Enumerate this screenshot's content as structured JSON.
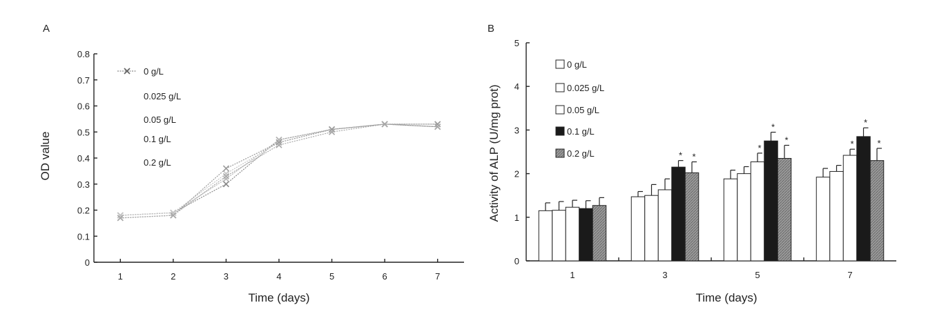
{
  "panels": [
    {
      "letter": "A",
      "chart_data": {
        "type": "line",
        "xlabel": "Time (days)",
        "ylabel": "OD value",
        "x_ticks": [
          "1",
          "2",
          "3",
          "4",
          "5",
          "6",
          "7"
        ],
        "y_ticks": [
          "0",
          "0.1",
          "0.2",
          "0.3",
          "0.4",
          "0.5",
          "0.6",
          "0.7",
          "0.8"
        ],
        "xlim": [
          0.5,
          7.5
        ],
        "ylim": [
          0,
          0.8
        ],
        "x": [
          1,
          2,
          3,
          4,
          5,
          6,
          7
        ],
        "legend": [
          "0 g/L",
          "0.025 g/L",
          "0.05 g/L",
          "0.1 g/L",
          "0.2 g/L"
        ],
        "legend_position": "top-left",
        "series": [
          {
            "name": "0 g/L",
            "values": [
              0.18,
              0.19,
              0.3,
              0.47,
              0.51,
              0.53,
              0.52
            ]
          },
          {
            "name": "0.025 g/L",
            "values": [
              0.18,
              0.19,
              0.32,
              0.47,
              0.51,
              0.53,
              0.53
            ]
          },
          {
            "name": "0.05 g/L",
            "values": [
              0.18,
              0.19,
              0.34,
              0.46,
              0.51,
              0.53,
              0.53
            ]
          },
          {
            "name": "0.1 g/L",
            "values": [
              0.17,
              0.18,
              0.36,
              0.46,
              0.51,
              0.53,
              0.53
            ]
          },
          {
            "name": "0.2 g/L",
            "values": [
              0.17,
              0.18,
              0.33,
              0.45,
              0.5,
              0.53,
              0.52
            ]
          }
        ],
        "colors": [
          "#8a8a8a",
          "#b5b5b5",
          "#c4c4c4",
          "#9a9a9a",
          "#a8a8a8"
        ]
      }
    },
    {
      "letter": "B",
      "chart_data": {
        "type": "bar",
        "xlabel": "Time (days)",
        "ylabel": "Activity of ALP (U/mg prot)",
        "categories": [
          "1",
          "3",
          "5",
          "7"
        ],
        "y_ticks": [
          "0",
          "1",
          "2",
          "3",
          "4",
          "5"
        ],
        "ylim": [
          0,
          5
        ],
        "legend_position": "top-left",
        "series": [
          {
            "name": "0 g/L",
            "fill": "#ffffff",
            "values": [
              1.15,
              1.47,
              1.88,
              1.92
            ],
            "errors": [
              0.18,
              0.12,
              0.2,
              0.2
            ],
            "sig": [
              false,
              false,
              false,
              false
            ]
          },
          {
            "name": "0.025 g/L",
            "fill": "#ffffff",
            "values": [
              1.16,
              1.5,
              2.0,
              2.05
            ],
            "errors": [
              0.2,
              0.25,
              0.16,
              0.14
            ],
            "sig": [
              false,
              false,
              false,
              false
            ]
          },
          {
            "name": "0.05 g/L",
            "fill": "#ffffff",
            "values": [
              1.23,
              1.63,
              2.27,
              2.42
            ],
            "errors": [
              0.16,
              0.25,
              0.2,
              0.14
            ],
            "sig": [
              false,
              false,
              true,
              true
            ]
          },
          {
            "name": "0.1 g/L",
            "fill": "#1a1a1a",
            "values": [
              1.2,
              2.15,
              2.75,
              2.85
            ],
            "errors": [
              0.18,
              0.15,
              0.2,
              0.2
            ],
            "sig": [
              false,
              true,
              true,
              true
            ]
          },
          {
            "name": "0.2 g/L",
            "fill": "#8c8c8c",
            "values": [
              1.27,
              2.02,
              2.35,
              2.3
            ],
            "errors": [
              0.18,
              0.25,
              0.3,
              0.28
            ],
            "sig": [
              false,
              true,
              true,
              true
            ]
          }
        ],
        "significance_symbol": "*"
      }
    }
  ]
}
